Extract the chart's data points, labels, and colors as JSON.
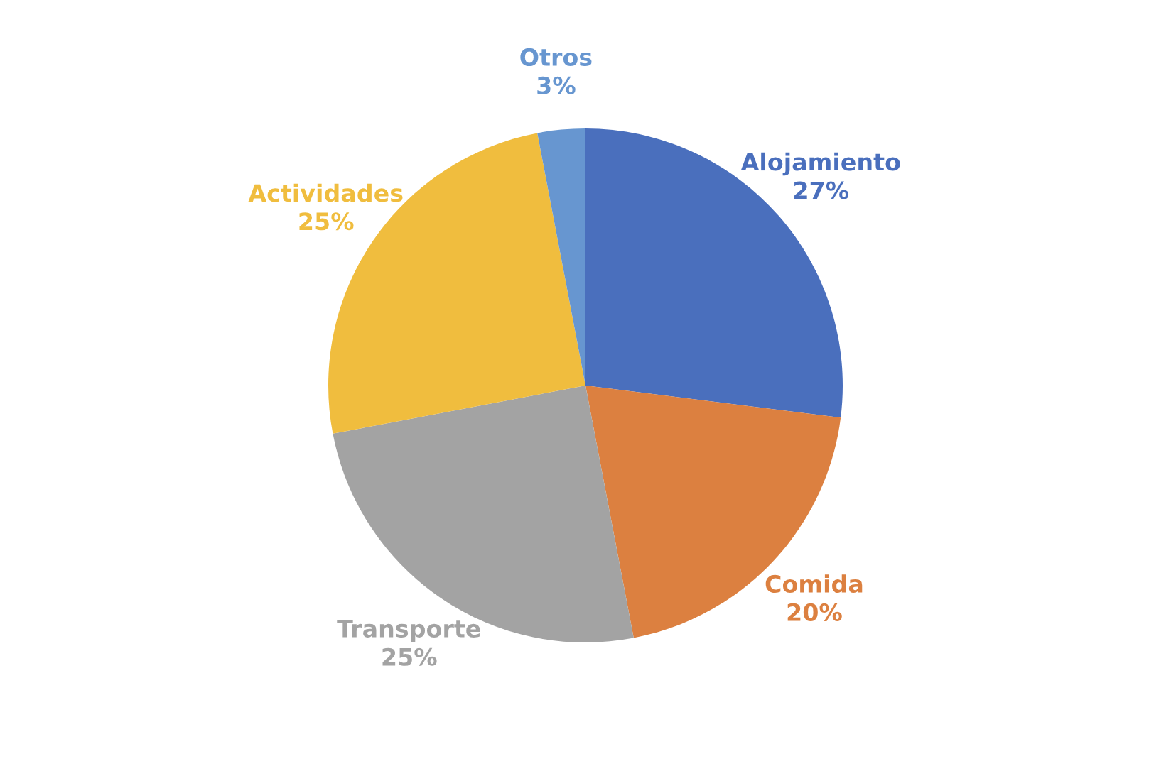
{
  "chart_data": {
    "type": "pie",
    "categories": [
      "Alojamiento",
      "Comida",
      "Transporte",
      "Actividades",
      "Otros"
    ],
    "values": [
      27,
      20,
      25,
      25,
      3
    ],
    "value_labels": [
      "27%",
      "20%",
      "25%",
      "25%",
      "3%"
    ],
    "colors": [
      "#4a6fbd",
      "#dc8040",
      "#a3a3a3",
      "#f0bd3e",
      "#6796d0"
    ],
    "legend": false
  }
}
